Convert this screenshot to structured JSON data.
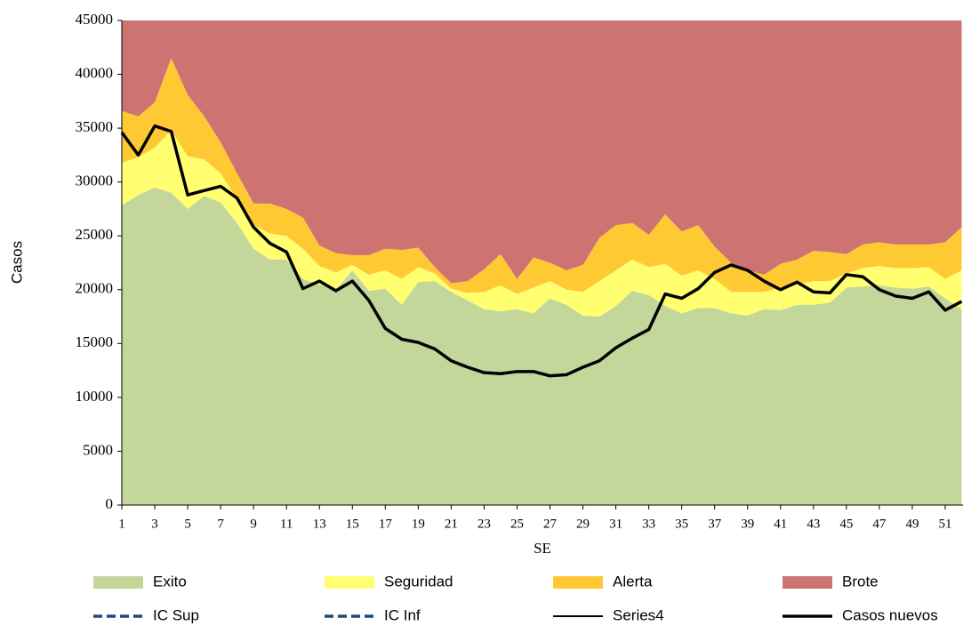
{
  "chart_data": {
    "type": "area",
    "xlabel": "SE",
    "ylabel": "Casos",
    "x": [
      1,
      2,
      3,
      4,
      5,
      6,
      7,
      8,
      9,
      10,
      11,
      12,
      13,
      14,
      15,
      16,
      17,
      18,
      19,
      20,
      21,
      22,
      23,
      24,
      25,
      26,
      27,
      28,
      29,
      30,
      31,
      32,
      33,
      34,
      35,
      36,
      37,
      38,
      39,
      40,
      41,
      42,
      43,
      44,
      45,
      46,
      47,
      48,
      49,
      50,
      51,
      52
    ],
    "xlim": [
      1,
      52
    ],
    "xticks": [
      1,
      3,
      5,
      7,
      9,
      11,
      13,
      15,
      17,
      19,
      21,
      23,
      25,
      27,
      29,
      31,
      33,
      35,
      37,
      39,
      41,
      43,
      45,
      47,
      49,
      51
    ],
    "ylim": [
      0,
      45000
    ],
    "yticks": [
      0,
      5000,
      10000,
      15000,
      20000,
      25000,
      30000,
      35000,
      40000,
      45000
    ],
    "series": [
      {
        "name": "Exito",
        "type": "area",
        "color": "#c4d79b",
        "values": [
          27800,
          28800,
          29500,
          29000,
          27500,
          28700,
          28100,
          26200,
          23800,
          22800,
          22800,
          21000,
          20500,
          20000,
          21800,
          19900,
          20100,
          18600,
          20700,
          20800,
          19800,
          19000,
          18200,
          18000,
          18200,
          17800,
          19200,
          18600,
          17600,
          17500,
          18500,
          19900,
          19500,
          18500,
          17800,
          18300,
          18300,
          17800,
          17600,
          18200,
          18100,
          18600,
          18600,
          18800,
          20200,
          20300,
          20400,
          20200,
          20100,
          20300,
          19200,
          18200
        ]
      },
      {
        "name": "Seguridad",
        "type": "area",
        "color": "#ffff70",
        "values": [
          4000,
          3500,
          3700,
          5800,
          4900,
          3400,
          2700,
          2200,
          2200,
          2400,
          2200,
          2800,
          1700,
          1600,
          500,
          1500,
          1700,
          2400,
          1400,
          700,
          300,
          700,
          1600,
          2400,
          1400,
          2400,
          1600,
          1400,
          2200,
          3300,
          3300,
          2900,
          2600,
          3900,
          3500,
          3500,
          2700,
          2000,
          2200,
          1600,
          2100,
          1900,
          2200,
          2000,
          1300,
          1700,
          1800,
          1800,
          1900,
          1800,
          1800,
          3600
        ]
      },
      {
        "name": "Alerta",
        "type": "area",
        "color": "#ffc933",
        "values": [
          4800,
          3800,
          4200,
          6700,
          5700,
          4000,
          2900,
          2400,
          2000,
          2800,
          2500,
          2900,
          1900,
          1800,
          900,
          1800,
          2000,
          2700,
          1800,
          600,
          500,
          1100,
          2100,
          2900,
          1400,
          2800,
          1700,
          1800,
          2500,
          4000,
          4200,
          3400,
          3000,
          4600,
          4100,
          4200,
          3000,
          2700,
          2000,
          1600,
          2200,
          2300,
          2800,
          2700,
          1800,
          2200,
          2200,
          2200,
          2200,
          2100,
          3400,
          4000
        ]
      },
      {
        "name": "Brote",
        "type": "area",
        "color": "#cd7372",
        "values": [
          8400,
          8900,
          7600,
          3500,
          6900,
          8900,
          11300,
          14200,
          17000,
          17000,
          17500,
          18300,
          20900,
          21600,
          21800,
          21800,
          21200,
          21300,
          21100,
          22900,
          24400,
          24200,
          23100,
          21700,
          24000,
          22000,
          22500,
          23200,
          22700,
          20200,
          19000,
          18800,
          19900,
          18000,
          19600,
          19000,
          21000,
          22500,
          23200,
          23600,
          22600,
          22200,
          21400,
          21500,
          21700,
          20800,
          20600,
          20800,
          20800,
          20800,
          20600,
          19200
        ]
      },
      {
        "name": "IC Sup",
        "type": "dashed",
        "color": "#1f497d"
      },
      {
        "name": "IC Inf",
        "type": "dashed",
        "color": "#1f497d"
      },
      {
        "name": "Series4",
        "type": "line",
        "color": "#000000",
        "values": [
          34600,
          32500,
          35200,
          34700,
          28800,
          29200,
          29600,
          28500,
          25800,
          24300,
          23500,
          20100,
          20800,
          19900,
          20800,
          19000,
          16400,
          15400,
          15100,
          14500,
          13400,
          12800,
          12300,
          12200,
          12400,
          12400,
          12000,
          12100,
          12800,
          13400,
          14600,
          15500,
          16300,
          19600,
          19200,
          20100,
          21600,
          22300,
          21800,
          20800,
          20000,
          20700,
          19800,
          19700,
          21400,
          21200,
          20000,
          19400,
          19200,
          19800,
          18100,
          18900
        ]
      },
      {
        "name": "Casos nuevos",
        "type": "thick",
        "color": "#000000",
        "values": [
          34600,
          32500,
          35200,
          34700,
          28800,
          29200,
          29600,
          28500,
          25800,
          24300,
          23500,
          20100,
          20800,
          19900,
          20800,
          19000,
          16400,
          15400,
          15100,
          14500,
          13400,
          12800,
          12300,
          12200,
          12400,
          12400,
          12000,
          12100,
          12800,
          13400,
          14600,
          15500,
          16300,
          19600,
          19200,
          20100,
          21600,
          22300,
          21800,
          20800,
          20000,
          20700,
          19800,
          19700,
          21400,
          21200,
          20000,
          19400,
          19200,
          19800,
          18100,
          18900
        ]
      }
    ]
  }
}
